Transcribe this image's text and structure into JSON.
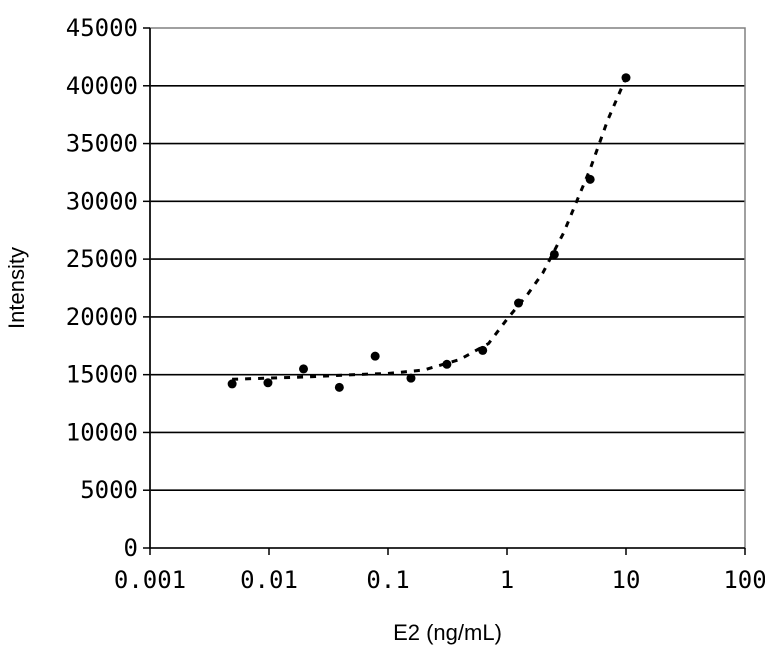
{
  "chart_data": {
    "type": "scatter",
    "title": "",
    "xlabel": "E2 (ng/mL)",
    "ylabel": "Intensity",
    "xscale": "log",
    "xlim": [
      0.001,
      100
    ],
    "ylim": [
      0,
      45000
    ],
    "x_ticks": [
      0.001,
      0.01,
      0.1,
      1,
      10,
      100
    ],
    "x_tick_labels": [
      "0.001",
      "0.01",
      "0.1",
      "1",
      "10",
      "100"
    ],
    "y_ticks": [
      0,
      5000,
      10000,
      15000,
      20000,
      25000,
      30000,
      35000,
      40000,
      45000
    ],
    "y_tick_labels": [
      "0",
      "5000",
      "10000",
      "15000",
      "20000",
      "25000",
      "30000",
      "35000",
      "40000",
      "45000"
    ],
    "grid": {
      "horizontal": true,
      "vertical": false
    },
    "legend": "none",
    "marker_color": "#000000",
    "fit_line_style": "dashed",
    "series": [
      {
        "points": [
          {
            "x": 0.0049,
            "y": 14200
          },
          {
            "x": 0.0098,
            "y": 14300
          },
          {
            "x": 0.0195,
            "y": 15500
          },
          {
            "x": 0.039,
            "y": 13900
          },
          {
            "x": 0.078,
            "y": 16600
          },
          {
            "x": 0.156,
            "y": 14700
          },
          {
            "x": 0.3125,
            "y": 15900
          },
          {
            "x": 0.625,
            "y": 17100
          },
          {
            "x": 1.25,
            "y": 21200
          },
          {
            "x": 2.5,
            "y": 25400
          },
          {
            "x": 5,
            "y": 31900
          },
          {
            "x": 10,
            "y": 40700
          }
        ]
      }
    ],
    "fit_curve": {
      "points": [
        {
          "x": 0.0049,
          "y": 14600
        },
        {
          "x": 0.01,
          "y": 14700
        },
        {
          "x": 0.02,
          "y": 14800
        },
        {
          "x": 0.05,
          "y": 15000
        },
        {
          "x": 0.1,
          "y": 15100
        },
        {
          "x": 0.2,
          "y": 15400
        },
        {
          "x": 0.4,
          "y": 16300
        },
        {
          "x": 0.7,
          "y": 17700
        },
        {
          "x": 1.0,
          "y": 19800
        },
        {
          "x": 1.5,
          "y": 22000
        },
        {
          "x": 2.0,
          "y": 23800
        },
        {
          "x": 3.0,
          "y": 27300
        },
        {
          "x": 4.0,
          "y": 30400
        },
        {
          "x": 5.0,
          "y": 32800
        },
        {
          "x": 7.0,
          "y": 37000
        },
        {
          "x": 10.0,
          "y": 40700
        }
      ]
    }
  }
}
